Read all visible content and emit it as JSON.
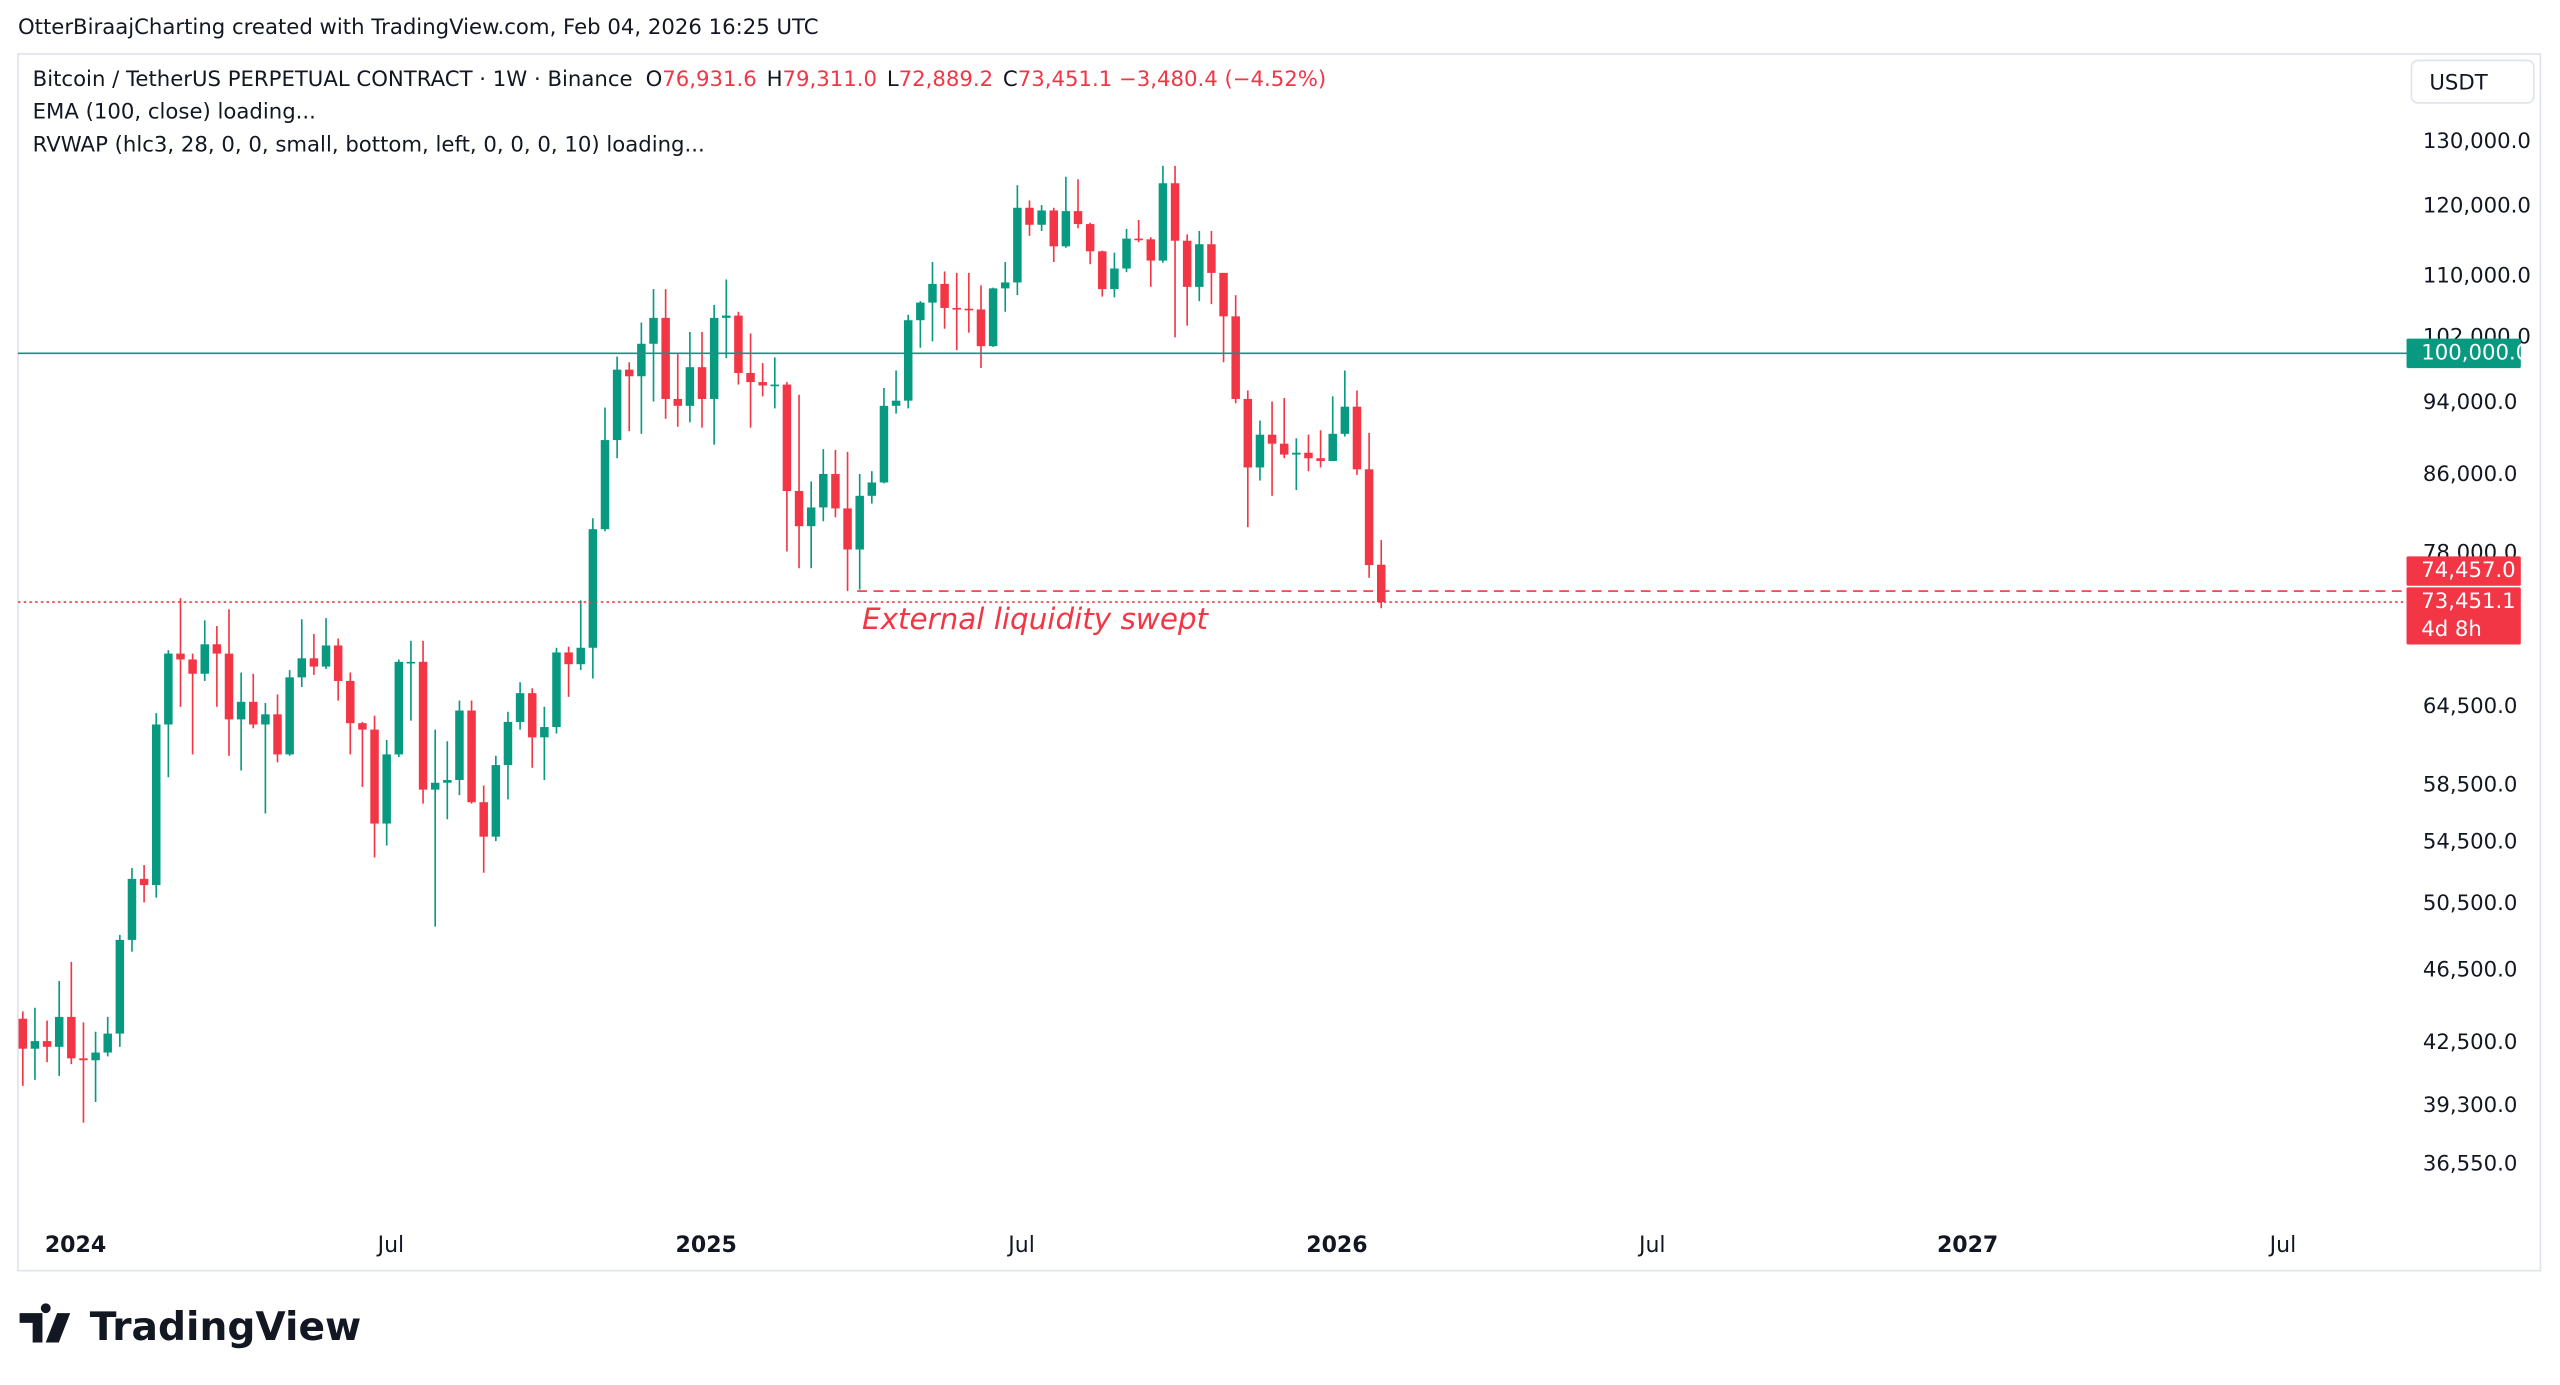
{
  "header": {
    "attribution": "OtterBiraajCharting created with TradingView.com, Feb 04, 2026 16:25 UTC",
    "logo": "TradingView"
  },
  "chart_data": {
    "type": "candlestick",
    "title": "Bitcoin / TetherUS PERPETUAL CONTRACT · 1W · Binance",
    "ohlc_legend": [
      {
        "key": "O",
        "text": "76,931.6"
      },
      {
        "key": "H",
        "text": "79,311.0"
      },
      {
        "key": "L",
        "text": "72,889.2"
      },
      {
        "key": "C",
        "text": "73,451.1"
      }
    ],
    "change": "−3,480.4 (−4.52%)",
    "indicators": [
      "EMA (100, close) loading...",
      "RVWAP (hlc3, 28, 0, 0, small, bottom, left, 0, 0, 0, 10) loading..."
    ],
    "currency": "USDT",
    "open": [
      43800,
      42200,
      42600,
      42300,
      43900,
      41700,
      41600,
      42000,
      43000,
      48300,
      52100,
      51700,
      63100,
      68900,
      68400,
      67200,
      69700,
      68900,
      63500,
      64900,
      63100,
      63900,
      60800,
      66900,
      68500,
      67800,
      69600,
      66600,
      63200,
      62700,
      55800,
      60800,
      68200,
      68200,
      58200,
      58700,
      58900,
      64200,
      57300,
      54900,
      60000,
      63300,
      65600,
      62100,
      62900,
      69000,
      68000,
      69400,
      80400,
      89800,
      98000,
      97200,
      101200,
      104500,
      94500,
      93700,
      98300,
      94500,
      104500,
      104800,
      97600,
      96500,
      96100,
      96200,
      84300,
      80700,
      82600,
      86100,
      82500,
      78400,
      83800,
      85200,
      93700,
      94300,
      104200,
      106500,
      109000,
      105800,
      105700,
      105600,
      100900,
      108400,
      109200,
      119800,
      117300,
      119400,
      114200,
      119300,
      117400,
      113500,
      108300,
      111100,
      115300,
      115200,
      112200,
      123500,
      115000,
      108600,
      114500,
      110500,
      104700,
      94500,
      86800,
      90400,
      89400,
      88200,
      88400,
      87800,
      87500,
      90500,
      93600,
      86600,
      76931.6
    ],
    "high": [
      44200,
      44400,
      43700,
      45900,
      47000,
      43600,
      43100,
      43900,
      48600,
      52800,
      53000,
      64000,
      69200,
      73800,
      68900,
      71800,
      71300,
      72800,
      67300,
      67200,
      64800,
      65500,
      67500,
      71900,
      70600,
      72000,
      70200,
      67300,
      63300,
      63800,
      61900,
      68400,
      70000,
      70000,
      62700,
      61800,
      65000,
      65000,
      58500,
      60700,
      64100,
      66500,
      66000,
      64500,
      69400,
      69500,
      73600,
      81500,
      93500,
      99600,
      98900,
      103900,
      108300,
      108300,
      99900,
      102700,
      102700,
      106200,
      109600,
      105300,
      102500,
      98800,
      99500,
      96500,
      95000,
      85300,
      88800,
      88700,
      88500,
      86100,
      86400,
      95800,
      97900,
      104900,
      106700,
      112000,
      110700,
      110500,
      110500,
      108800,
      108500,
      112000,
      123200,
      120900,
      120200,
      119800,
      124500,
      124100,
      117600,
      113600,
      113300,
      116700,
      118000,
      115500,
      126200,
      126200,
      115900,
      116400,
      116400,
      110500,
      107500,
      95500,
      92000,
      94200,
      94600,
      90000,
      90400,
      90900,
      94800,
      97900,
      95500,
      90600,
      79311
    ],
    "low": [
      40300,
      40600,
      41500,
      40800,
      41400,
      38500,
      39500,
      41800,
      42300,
      47600,
      50600,
      50900,
      59100,
      64500,
      60800,
      66600,
      64500,
      60700,
      59600,
      62800,
      56500,
      60200,
      60700,
      66100,
      67100,
      67600,
      65000,
      60800,
      58400,
      53500,
      54300,
      60600,
      63400,
      57200,
      49100,
      56100,
      57800,
      57200,
      52500,
      54600,
      57500,
      62700,
      59800,
      58900,
      62400,
      65300,
      67500,
      66800,
      80200,
      87800,
      90800,
      90500,
      94200,
      92200,
      91300,
      91800,
      91200,
      89300,
      99400,
      96200,
      91200,
      94800,
      93400,
      78200,
      76600,
      76600,
      81200,
      81600,
      74457,
      74600,
      83000,
      85100,
      92800,
      93400,
      100700,
      101500,
      103100,
      100400,
      102600,
      98200,
      100800,
      105300,
      107500,
      115700,
      116400,
      112000,
      114000,
      116800,
      111700,
      107300,
      107200,
      110600,
      114800,
      108600,
      111900,
      102000,
      103500,
      106700,
      106300,
      98900,
      94000,
      80600,
      85400,
      83800,
      87800,
      84400,
      86400,
      86800,
      87500,
      90200,
      86000,
      75700,
      72889.2
    ],
    "close": [
      42200,
      42600,
      42300,
      43900,
      41700,
      41600,
      42000,
      43000,
      48300,
      52100,
      51700,
      63100,
      68900,
      68400,
      67200,
      69700,
      68900,
      63500,
      64900,
      63100,
      63900,
      60800,
      66900,
      68500,
      67800,
      69600,
      66600,
      63200,
      62700,
      55800,
      60800,
      68200,
      68200,
      58200,
      58700,
      58900,
      64200,
      57300,
      54900,
      60000,
      63300,
      65600,
      62100,
      62900,
      69000,
      68000,
      69400,
      80400,
      89800,
      98000,
      97200,
      101200,
      104500,
      94500,
      93700,
      98300,
      94500,
      104500,
      104800,
      97600,
      96500,
      96100,
      96200,
      84300,
      80700,
      82600,
      86100,
      82500,
      78400,
      83800,
      85200,
      93700,
      94300,
      104200,
      106500,
      109000,
      105800,
      105700,
      105600,
      100900,
      108400,
      109200,
      119800,
      117300,
      119400,
      114200,
      119300,
      117400,
      113500,
      108300,
      111100,
      115300,
      115200,
      112200,
      123500,
      115000,
      108600,
      114500,
      110500,
      104700,
      94500,
      86800,
      90400,
      89400,
      88200,
      88400,
      87800,
      87500,
      90500,
      93600,
      86600,
      76900,
      73451.1
    ],
    "up_color": "#089981",
    "down_color": "#f23645",
    "log_scale": true,
    "ylim": [
      34050,
      145000
    ],
    "yticks": [
      {
        "value": 130000,
        "label": "130,000.0"
      },
      {
        "value": 120000,
        "label": "120,000.0"
      },
      {
        "value": 110000,
        "label": "110,000.0"
      },
      {
        "value": 102000,
        "label": "102,000.0"
      },
      {
        "value": 94000,
        "label": "94,000.0"
      },
      {
        "value": 86000,
        "label": "86,000.0"
      },
      {
        "value": 78000,
        "label": "78,000.0"
      },
      {
        "value": 64500,
        "label": "64,500.0"
      },
      {
        "value": 58500,
        "label": "58,500.0"
      },
      {
        "value": 54500,
        "label": "54,500.0"
      },
      {
        "value": 50500,
        "label": "50,500.0"
      },
      {
        "value": 46500,
        "label": "46,500.0"
      },
      {
        "value": 42500,
        "label": "42,500.0"
      },
      {
        "value": 39300,
        "label": "39,300.0"
      },
      {
        "value": 36550,
        "label": "36,550.0"
      }
    ],
    "xlim": [
      -0.4,
      196.4
    ],
    "xticks": [
      {
        "value": 3,
        "label": "2024"
      },
      {
        "value": 29,
        "label": "Jul"
      },
      {
        "value": 55,
        "label": "2025"
      },
      {
        "value": 81,
        "label": "Jul"
      },
      {
        "value": 107,
        "label": "2026"
      },
      {
        "value": 133,
        "label": "Jul"
      },
      {
        "value": 159,
        "label": "2027"
      },
      {
        "value": 185,
        "label": "Jul"
      }
    ],
    "hlines": [
      {
        "value": 100000,
        "label": "100,000.0",
        "color": "#089981",
        "style": "solid"
      },
      {
        "value": 74457,
        "label": "74,457.0",
        "color": "#f23645",
        "style": "dashed"
      },
      {
        "value": 73451.1,
        "label": "73,451.1",
        "color": "#f23645",
        "style": "dotted"
      }
    ],
    "countdown": "4d 8h",
    "annotation": "External liquidity swept"
  }
}
